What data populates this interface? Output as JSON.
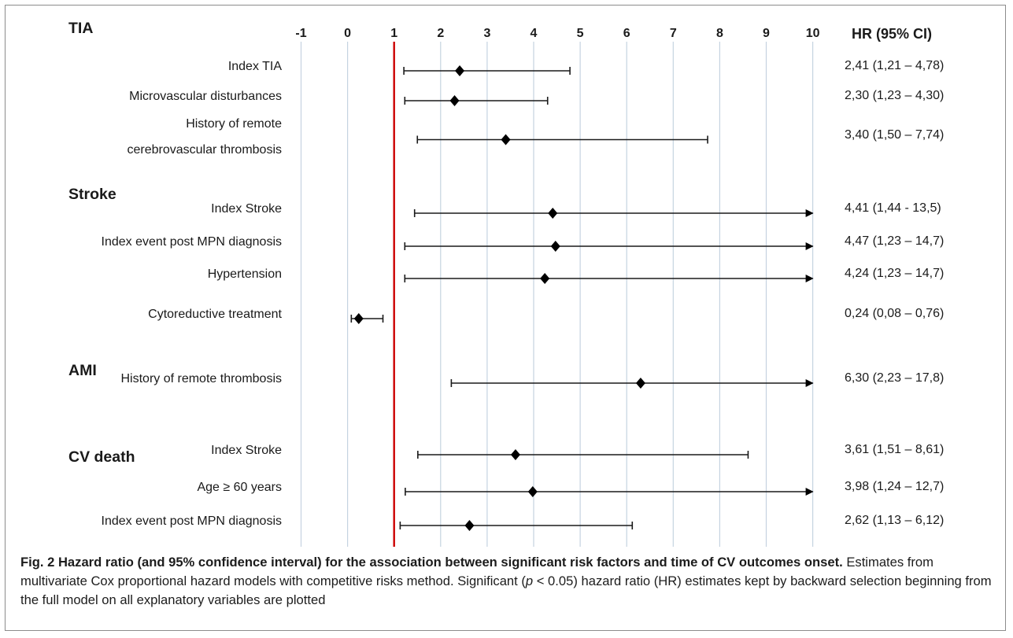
{
  "chart_data": {
    "type": "forest",
    "x_ticks": [
      "-1",
      "0",
      "1",
      "2",
      "3",
      "4",
      "5",
      "6",
      "7",
      "8",
      "9",
      "10"
    ],
    "xlim": [
      -1,
      10
    ],
    "reference_line": 1,
    "ci_header": "HR (95% CI)",
    "colors": {
      "reference_line": "#cc0000",
      "gridline": "#c5d3e0",
      "marker": "#000000"
    },
    "groups": [
      {
        "name": "TIA",
        "rows": [
          {
            "label_lines": [
              "Index TIA"
            ],
            "hr": 2.41,
            "lower": 1.21,
            "upper": 4.78,
            "arrow": false,
            "ci_text": "2,41 (1,21 – 4,78)"
          },
          {
            "label_lines": [
              "Microvascular disturbances"
            ],
            "hr": 2.3,
            "lower": 1.23,
            "upper": 4.3,
            "arrow": false,
            "ci_text": "2,30 (1,23 – 4,30)"
          },
          {
            "label_lines": [
              "History of remote",
              "cerebrovascular thrombosis"
            ],
            "hr": 3.4,
            "lower": 1.5,
            "upper": 7.74,
            "arrow": false,
            "ci_text": "3,40 (1,50 – 7,74)"
          }
        ]
      },
      {
        "name": "Stroke",
        "rows": [
          {
            "label_lines": [
              "Index Stroke"
            ],
            "hr": 4.41,
            "lower": 1.44,
            "upper": 13.5,
            "arrow": true,
            "ci_text": "4,41 (1,44 - 13,5)"
          },
          {
            "label_lines": [
              "Index event post MPN diagnosis"
            ],
            "hr": 4.47,
            "lower": 1.23,
            "upper": 14.7,
            "arrow": true,
            "ci_text": "4,47 (1,23 – 14,7)"
          },
          {
            "label_lines": [
              "Hypertension"
            ],
            "hr": 4.24,
            "lower": 1.23,
            "upper": 14.7,
            "arrow": true,
            "ci_text": "4,24 (1,23 – 14,7)"
          },
          {
            "label_lines": [
              "Cytoreductive treatment"
            ],
            "hr": 0.24,
            "lower": 0.08,
            "upper": 0.76,
            "arrow": false,
            "ci_text": "0,24 (0,08 – 0,76)"
          }
        ]
      },
      {
        "name": "AMI",
        "rows": [
          {
            "label_lines": [
              "History of remote thrombosis"
            ],
            "hr": 6.3,
            "lower": 2.23,
            "upper": 17.8,
            "arrow": true,
            "ci_text": "6,30 (2,23 – 17,8)"
          }
        ]
      },
      {
        "name": "CV death",
        "rows": [
          {
            "label_lines": [
              "Index Stroke"
            ],
            "hr": 3.61,
            "lower": 1.51,
            "upper": 8.61,
            "arrow": false,
            "ci_text": "3,61 (1,51 – 8,61)"
          },
          {
            "label_lines": [
              "Age ≥ 60 years"
            ],
            "hr": 3.98,
            "lower": 1.24,
            "upper": 12.7,
            "arrow": true,
            "ci_text": "3,98 (1,24 – 12,7)"
          },
          {
            "label_lines": [
              "Index event post MPN diagnosis"
            ],
            "hr": 2.62,
            "lower": 1.13,
            "upper": 6.12,
            "arrow": false,
            "ci_text": "2,62 (1,13 – 6,12)"
          }
        ]
      }
    ]
  },
  "caption": {
    "title": "Fig. 2 Hazard ratio (and 95% confidence interval) for the association between significant risk factors and time of CV outcomes onset.",
    "body_before_p": " Estimates from multivariate Cox proportional hazard models with competitive risks method. Significant (",
    "p_symbol": "p",
    "body_after_p": " < 0.05) hazard ratio (HR) estimates kept by backward selection beginning from the full model on all explanatory variables are plotted"
  }
}
